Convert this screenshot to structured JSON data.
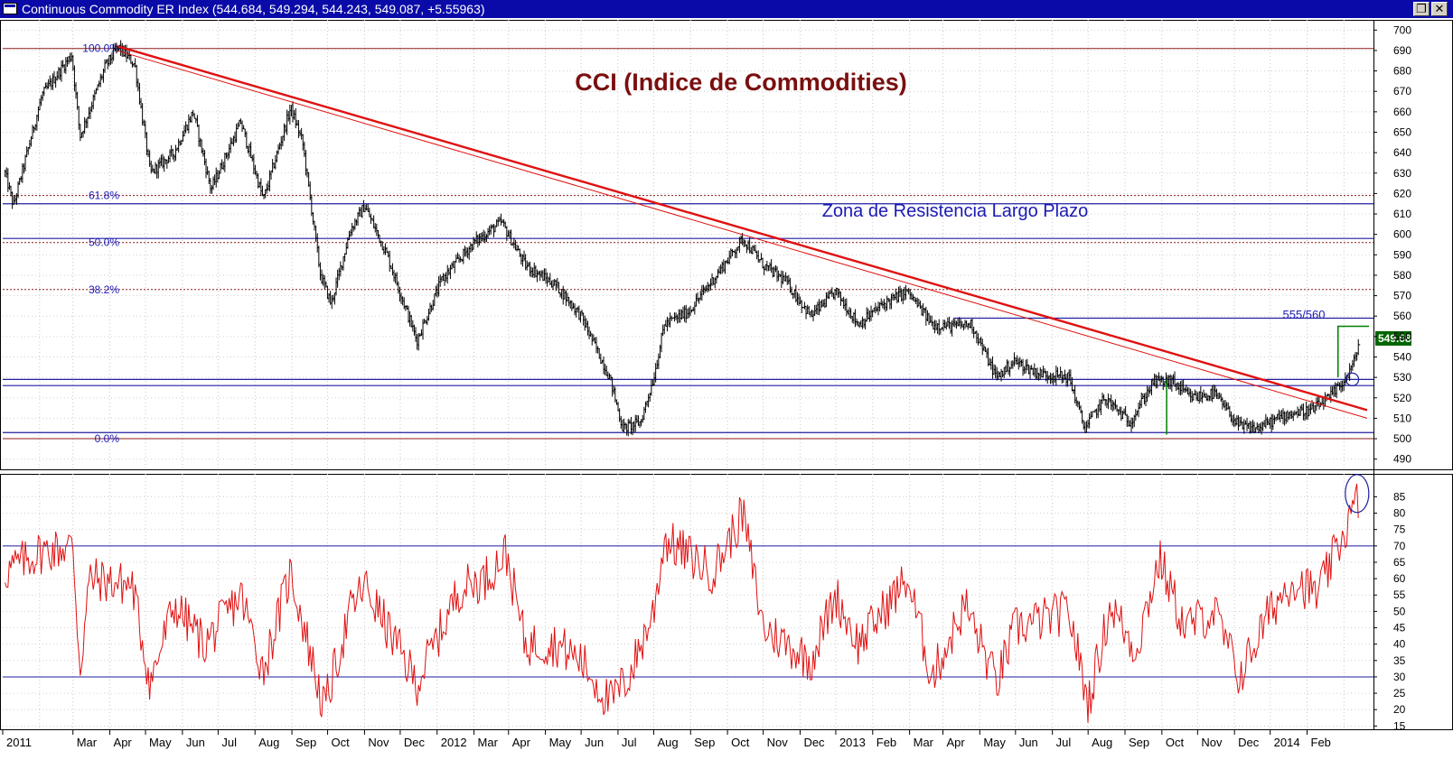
{
  "window": {
    "title": "Continuous Commodity ER Index (544.684, 549.294, 544.243, 549.087, +5.55963)",
    "restore_glyph": "❐",
    "close_glyph": "✕"
  },
  "colors": {
    "background": "#ffffff",
    "titlebar": "#0a0aa8",
    "price_bars": "#000000",
    "trendline": "#e01010",
    "fib_lines": "#8b1a1a",
    "support_resistance": "#1f1fa0",
    "oscillator": "#e01010",
    "target_marker": "#008000",
    "title_text": "#7a0f0f",
    "annotation_text": "#1a1ab5",
    "price_tag_bg": "#006400"
  },
  "chart_data": [
    {
      "type": "ohlc",
      "title": "CCI (Indice de Commodities)",
      "annotation": "Zona de Resistencia Largo Plazo",
      "target_label": "555/560",
      "last_price_tag": "549.08",
      "ylim": [
        485,
        705
      ],
      "y_ticks": [
        "490",
        "500",
        "510",
        "520",
        "530",
        "540",
        "550",
        "560",
        "570",
        "580",
        "590",
        "600",
        "610",
        "620",
        "630",
        "640",
        "650",
        "660",
        "670",
        "680",
        "690",
        "700"
      ],
      "x_labels": [
        "2011",
        "Mar",
        "Apr",
        "May",
        "Jun",
        "Jul",
        "Aug",
        "Sep",
        "Oct",
        "Nov",
        "Dec",
        "2012",
        "Mar",
        "Apr",
        "May",
        "Jun",
        "Jul",
        "Aug",
        "Sep",
        "Oct",
        "Nov",
        "Dec",
        "2013",
        "Feb",
        "Mar",
        "Apr",
        "May",
        "Jun",
        "Jul",
        "Aug",
        "Sep",
        "Oct",
        "Nov",
        "Dec",
        "2014",
        "Feb"
      ],
      "x_range": [
        "2011-01",
        "2014-02"
      ],
      "fibonacci": [
        {
          "label": "100.0%",
          "value": 691
        },
        {
          "label": "61.8%",
          "value": 619
        },
        {
          "label": "50.0%",
          "value": 596
        },
        {
          "label": "38.2%",
          "value": 573
        },
        {
          "label": "0.0%",
          "value": 500
        }
      ],
      "horizontal_levels": [
        615,
        598,
        559,
        529,
        526,
        503
      ],
      "key_points": [
        {
          "date": "2011-01-03",
          "value": 630
        },
        {
          "date": "2011-01-10",
          "value": 614
        },
        {
          "date": "2011-02-03",
          "value": 668
        },
        {
          "date": "2011-02-28",
          "value": 688
        },
        {
          "date": "2011-03-07",
          "value": 648
        },
        {
          "date": "2011-03-28",
          "value": 682
        },
        {
          "date": "2011-04-08",
          "value": 692
        },
        {
          "date": "2011-04-22",
          "value": 683
        },
        {
          "date": "2011-05-05",
          "value": 630
        },
        {
          "date": "2011-05-25",
          "value": 640
        },
        {
          "date": "2011-06-10",
          "value": 660
        },
        {
          "date": "2011-06-25",
          "value": 622
        },
        {
          "date": "2011-07-20",
          "value": 655
        },
        {
          "date": "2011-08-08",
          "value": 617
        },
        {
          "date": "2011-08-31",
          "value": 662
        },
        {
          "date": "2011-09-10",
          "value": 645
        },
        {
          "date": "2011-09-25",
          "value": 580
        },
        {
          "date": "2011-10-04",
          "value": 566
        },
        {
          "date": "2011-10-20",
          "value": 602
        },
        {
          "date": "2011-11-01",
          "value": 614
        },
        {
          "date": "2011-11-20",
          "value": 590
        },
        {
          "date": "2011-12-15",
          "value": 548
        },
        {
          "date": "2012-01-05",
          "value": 578
        },
        {
          "date": "2012-02-01",
          "value": 596
        },
        {
          "date": "2012-02-24",
          "value": 606
        },
        {
          "date": "2012-03-15",
          "value": 585
        },
        {
          "date": "2012-04-10",
          "value": 575
        },
        {
          "date": "2012-05-01",
          "value": 560
        },
        {
          "date": "2012-05-25",
          "value": 530
        },
        {
          "date": "2012-06-05",
          "value": 505
        },
        {
          "date": "2012-06-20",
          "value": 508
        },
        {
          "date": "2012-07-01",
          "value": 530
        },
        {
          "date": "2012-07-10",
          "value": 556
        },
        {
          "date": "2012-07-30",
          "value": 562
        },
        {
          "date": "2012-08-20",
          "value": 578
        },
        {
          "date": "2012-09-14",
          "value": 598
        },
        {
          "date": "2012-10-01",
          "value": 585
        },
        {
          "date": "2012-10-20",
          "value": 577
        },
        {
          "date": "2012-11-10",
          "value": 560
        },
        {
          "date": "2012-12-01",
          "value": 572
        },
        {
          "date": "2012-12-20",
          "value": 556
        },
        {
          "date": "2013-01-10",
          "value": 566
        },
        {
          "date": "2013-01-30",
          "value": 572
        },
        {
          "date": "2013-02-20",
          "value": 556
        },
        {
          "date": "2013-03-10",
          "value": 555
        },
        {
          "date": "2013-03-25",
          "value": 556
        },
        {
          "date": "2013-04-15",
          "value": 530
        },
        {
          "date": "2013-04-30",
          "value": 538
        },
        {
          "date": "2013-05-20",
          "value": 532
        },
        {
          "date": "2013-06-15",
          "value": 530
        },
        {
          "date": "2013-06-28",
          "value": 505
        },
        {
          "date": "2013-07-15",
          "value": 520
        },
        {
          "date": "2013-08-05",
          "value": 508
        },
        {
          "date": "2013-08-25",
          "value": 528
        },
        {
          "date": "2013-09-10",
          "value": 528
        },
        {
          "date": "2013-09-25",
          "value": 520
        },
        {
          "date": "2013-10-15",
          "value": 522
        },
        {
          "date": "2013-11-05",
          "value": 506
        },
        {
          "date": "2013-11-20",
          "value": 505
        },
        {
          "date": "2013-12-15",
          "value": 512
        },
        {
          "date": "2014-01-05",
          "value": 514
        },
        {
          "date": "2014-01-20",
          "value": 520
        },
        {
          "date": "2014-02-03",
          "value": 530
        },
        {
          "date": "2014-02-10",
          "value": 538
        },
        {
          "date": "2014-02-14",
          "value": 549.087
        }
      ]
    },
    {
      "type": "line",
      "name": "oscillator",
      "ylim": [
        14,
        92
      ],
      "y_ticks": [
        "15",
        "20",
        "25",
        "30",
        "35",
        "40",
        "45",
        "50",
        "55",
        "60",
        "65",
        "70",
        "75",
        "80",
        "85"
      ],
      "levels": [
        70,
        30
      ],
      "key_points": [
        {
          "date": "2011-01-03",
          "value": 62
        },
        {
          "date": "2011-02-01",
          "value": 68
        },
        {
          "date": "2011-03-01",
          "value": 70
        },
        {
          "date": "2011-03-07",
          "value": 32
        },
        {
          "date": "2011-03-15",
          "value": 60
        },
        {
          "date": "2011-04-20",
          "value": 58
        },
        {
          "date": "2011-05-05",
          "value": 28
        },
        {
          "date": "2011-05-25",
          "value": 52
        },
        {
          "date": "2011-06-20",
          "value": 40
        },
        {
          "date": "2011-07-20",
          "value": 55
        },
        {
          "date": "2011-08-08",
          "value": 32
        },
        {
          "date": "2011-08-31",
          "value": 62
        },
        {
          "date": "2011-09-28",
          "value": 20
        },
        {
          "date": "2011-10-20",
          "value": 50
        },
        {
          "date": "2011-11-01",
          "value": 58
        },
        {
          "date": "2011-12-15",
          "value": 28
        },
        {
          "date": "2012-01-20",
          "value": 57
        },
        {
          "date": "2012-02-10",
          "value": 60
        },
        {
          "date": "2012-02-28",
          "value": 68
        },
        {
          "date": "2012-03-15",
          "value": 40
        },
        {
          "date": "2012-04-10",
          "value": 40
        },
        {
          "date": "2012-05-01",
          "value": 35
        },
        {
          "date": "2012-05-25",
          "value": 22
        },
        {
          "date": "2012-06-10",
          "value": 30
        },
        {
          "date": "2012-07-01",
          "value": 50
        },
        {
          "date": "2012-07-10",
          "value": 72
        },
        {
          "date": "2012-08-20",
          "value": 62
        },
        {
          "date": "2012-09-14",
          "value": 80
        },
        {
          "date": "2012-10-01",
          "value": 45
        },
        {
          "date": "2012-11-10",
          "value": 35
        },
        {
          "date": "2012-12-01",
          "value": 55
        },
        {
          "date": "2012-12-20",
          "value": 40
        },
        {
          "date": "2013-01-30",
          "value": 60
        },
        {
          "date": "2013-02-20",
          "value": 30
        },
        {
          "date": "2013-03-20",
          "value": 52
        },
        {
          "date": "2013-04-15",
          "value": 28
        },
        {
          "date": "2013-05-01",
          "value": 45
        },
        {
          "date": "2013-06-15",
          "value": 50
        },
        {
          "date": "2013-07-01",
          "value": 22
        },
        {
          "date": "2013-07-20",
          "value": 52
        },
        {
          "date": "2013-08-10",
          "value": 38
        },
        {
          "date": "2013-08-30",
          "value": 66
        },
        {
          "date": "2013-09-20",
          "value": 45
        },
        {
          "date": "2013-10-15",
          "value": 50
        },
        {
          "date": "2013-11-05",
          "value": 30
        },
        {
          "date": "2013-12-01",
          "value": 50
        },
        {
          "date": "2013-12-20",
          "value": 60
        },
        {
          "date": "2014-01-10",
          "value": 55
        },
        {
          "date": "2014-01-25",
          "value": 68
        },
        {
          "date": "2014-02-14",
          "value": 85
        }
      ]
    }
  ]
}
